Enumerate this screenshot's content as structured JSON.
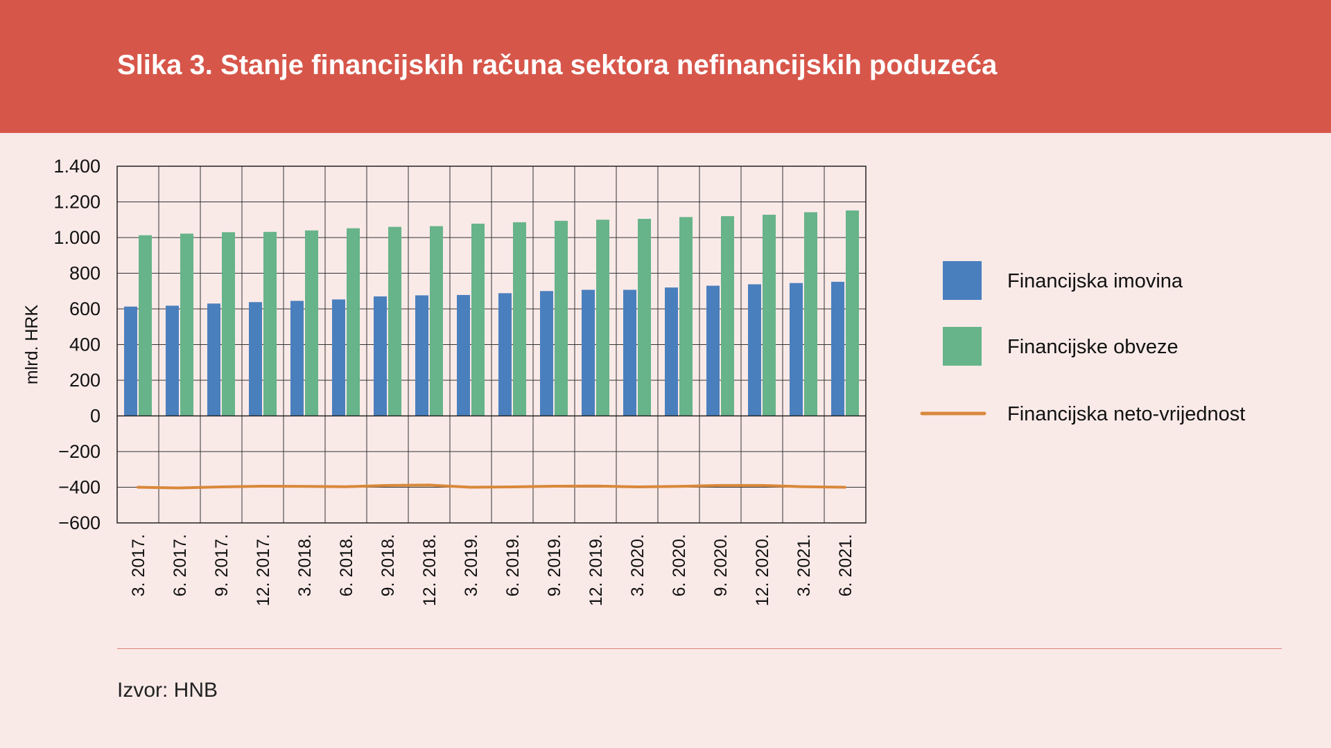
{
  "header": {
    "title": "Slika 3. Stanje financijskih računa sektora nefinancijskih poduzeća"
  },
  "footer": {
    "source": "Izvor: HNB"
  },
  "colors": {
    "header_bg": "#d7564a",
    "page_bg": "#f9eae8",
    "imovina": "#4a7fbd",
    "obveze": "#67b38a",
    "neto": "#d9883a"
  },
  "chart_data": {
    "type": "bar",
    "title": "Slika 3. Stanje financijskih računa sektora nefinancijskih poduzeća",
    "ylabel": "mlrd. HRK",
    "xlabel": "",
    "ylim": [
      -600,
      1400
    ],
    "yticks": [
      1400,
      1200,
      1000,
      800,
      600,
      400,
      200,
      0,
      -200,
      -400,
      -600
    ],
    "ytick_labels": [
      "1.400",
      "1.200",
      "1.000",
      "800",
      "600",
      "400",
      "200",
      "0",
      "−200",
      "−400",
      "−600"
    ],
    "grid": true,
    "legend_position": "right",
    "categories": [
      "3. 2017.",
      "6. 2017.",
      "9. 2017.",
      "12. 2017.",
      "3. 2018.",
      "6. 2018.",
      "9. 2018.",
      "12. 2018.",
      "3. 2019.",
      "6. 2019.",
      "9. 2019.",
      "12. 2019.",
      "3. 2020.",
      "6. 2020.",
      "9. 2020.",
      "12. 2020.",
      "3. 2021.",
      "6. 2021."
    ],
    "series": [
      {
        "name": "Financijska imovina",
        "type": "bar",
        "values": [
          613,
          618,
          630,
          638,
          645,
          653,
          670,
          676,
          678,
          688,
          700,
          707,
          707,
          720,
          730,
          738,
          745,
          752
        ]
      },
      {
        "name": "Financijske obveze",
        "type": "bar",
        "values": [
          1013,
          1022,
          1030,
          1032,
          1040,
          1052,
          1060,
          1064,
          1078,
          1086,
          1094,
          1100,
          1105,
          1115,
          1120,
          1128,
          1142,
          1152
        ]
      },
      {
        "name": "Financijska neto-vrijednost",
        "type": "line",
        "values": [
          -400,
          -404,
          -398,
          -394,
          -395,
          -397,
          -390,
          -388,
          -400,
          -398,
          -394,
          -393,
          -398,
          -395,
          -390,
          -390,
          -397,
          -400
        ]
      }
    ]
  }
}
